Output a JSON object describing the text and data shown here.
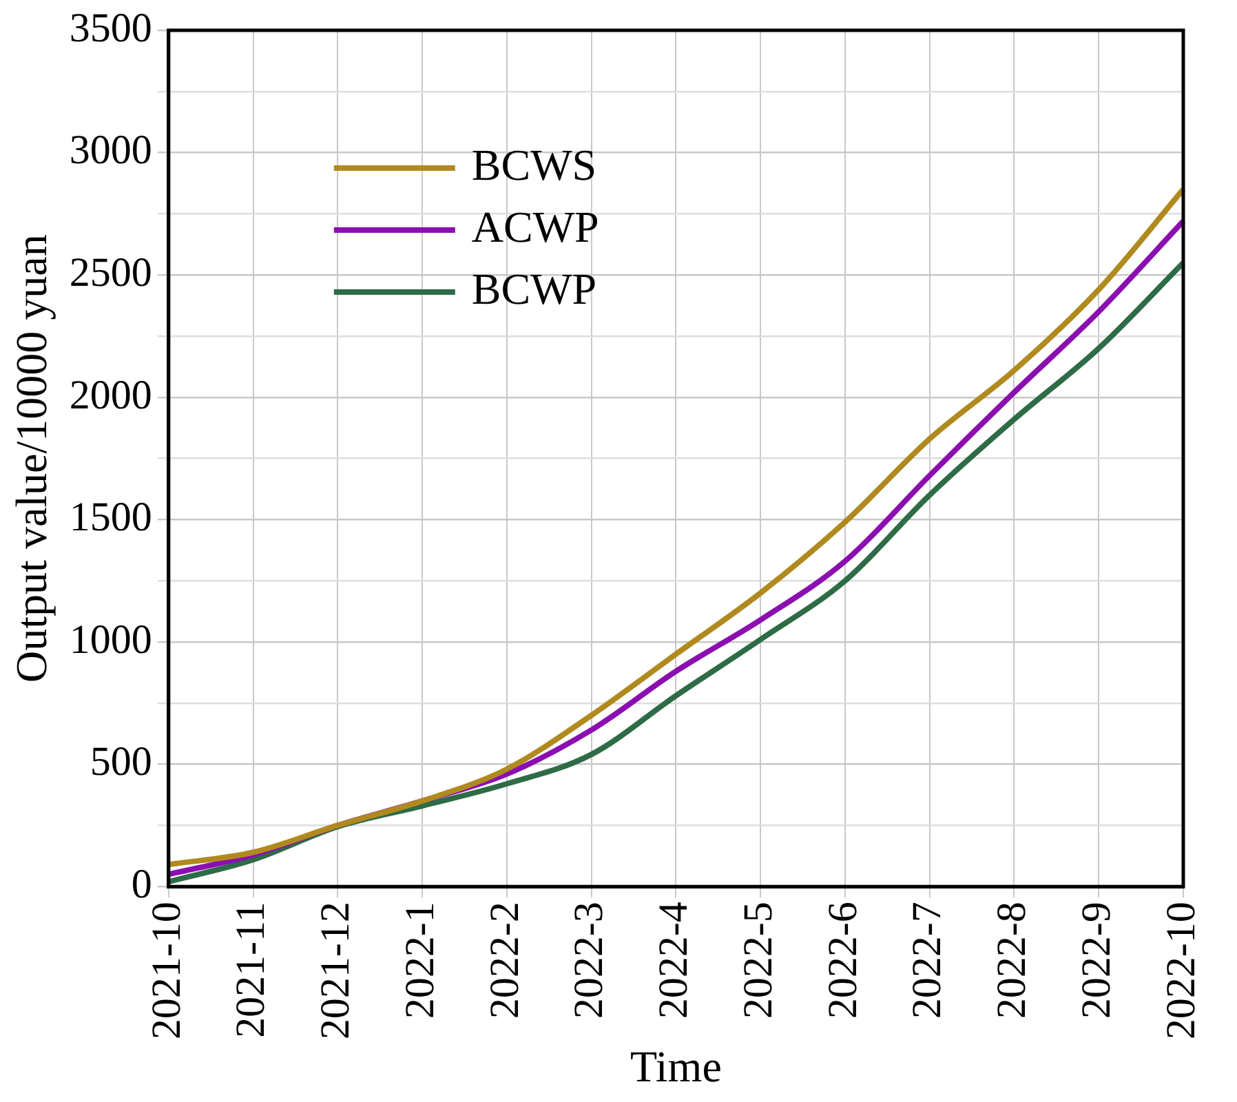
{
  "chart_data": {
    "type": "line",
    "xlabel": "Time",
    "ylabel": "Output value/10000 yuan",
    "categories": [
      "2021-10",
      "2021-11",
      "2021-12",
      "2022-1",
      "2022-2",
      "2022-3",
      "2022-4",
      "2022-5",
      "2022-6",
      "2022-7",
      "2022-8",
      "2022-9",
      "2022-10"
    ],
    "series": [
      {
        "name": "BCWS",
        "color": "#b08a1e",
        "values": [
          90,
          140,
          250,
          350,
          480,
          700,
          950,
          1200,
          1490,
          1830,
          2110,
          2440,
          2850
        ]
      },
      {
        "name": "ACWP",
        "color": "#8b0fb0",
        "values": [
          50,
          130,
          250,
          350,
          460,
          640,
          880,
          1090,
          1330,
          1680,
          2020,
          2350,
          2720
        ]
      },
      {
        "name": "BCWP",
        "color": "#2e6b47",
        "values": [
          20,
          110,
          245,
          330,
          420,
          540,
          780,
          1010,
          1250,
          1600,
          1910,
          2200,
          2550
        ]
      }
    ],
    "ylim": [
      0,
      3500
    ],
    "yticks": [
      0,
      {
        "value": 250,
        "label": null
      },
      500,
      {
        "value": 750,
        "label": null
      },
      1000,
      {
        "value": 1250,
        "label": null
      },
      1500,
      {
        "value": 1750,
        "label": null
      },
      2000,
      {
        "value": 2250,
        "label": null
      },
      2500,
      {
        "value": 2750,
        "label": null
      },
      3000,
      {
        "value": 3250,
        "label": null
      },
      3500
    ],
    "grid": true,
    "legend": "top left",
    "marker": "none",
    "line_style": "solid"
  }
}
